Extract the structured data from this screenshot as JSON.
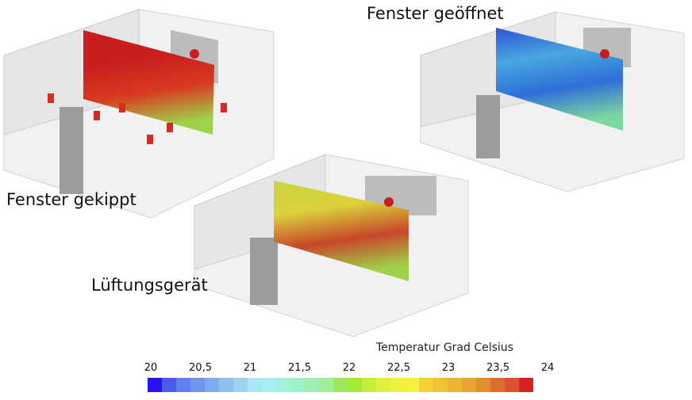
{
  "scenarios": [
    {
      "label": "Fenster gekippt",
      "plane_colors": [
        "#c81e1e",
        "#c81e1e",
        "#d83a20",
        "#9fd24a"
      ]
    },
    {
      "label": "Fenster geöffnet",
      "plane_colors": [
        "#2f52d6",
        "#49a7e0",
        "#2e6fd9",
        "#7bd7a0"
      ]
    },
    {
      "label": "Lüftungsgerät",
      "plane_colors": [
        "#c9d640",
        "#dbd23a",
        "#c7482a",
        "#9fd24a"
      ]
    }
  ],
  "legend": {
    "title": "Temperatur Grad Celsius",
    "ticks": [
      "20",
      "20,5",
      "21",
      "21,5",
      "22",
      "22,5",
      "23",
      "23,5",
      "24"
    ],
    "range": [
      20,
      24
    ],
    "colors": [
      "#2a12f0",
      "#4a5cf0",
      "#5f80ee",
      "#6f95ec",
      "#7eaaee",
      "#8fbff0",
      "#9fd2f2",
      "#a8e6f6",
      "#a8f0f0",
      "#a0f2dc",
      "#9ff2c8",
      "#9ef0b0",
      "#a3ee98",
      "#9ee860",
      "#a6e836",
      "#c6ec3c",
      "#def040",
      "#ecf240",
      "#f6f040",
      "#f2d038",
      "#eec236",
      "#eab434",
      "#e6a432",
      "#e08e30",
      "#da702c",
      "#d8542a",
      "#d62222"
    ]
  }
}
